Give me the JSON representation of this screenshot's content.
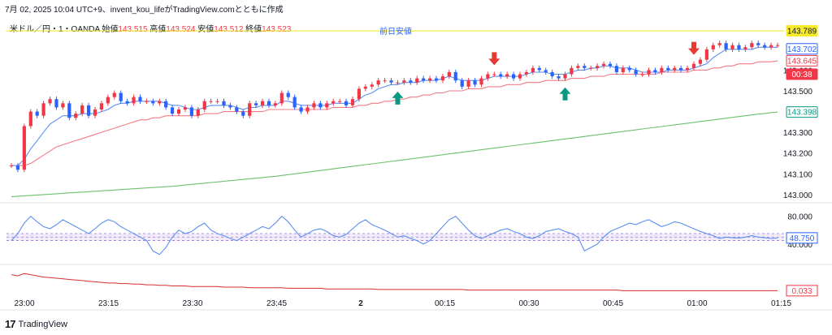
{
  "header": {
    "text": "7月 02, 2025 10:04 UTC+9、invent_kou_lifeがTradingView.comとともに作成"
  },
  "ohlc": {
    "symbol": "米ドル／円・1・OANDA",
    "open_label": "始値",
    "open": "143.515",
    "high_label": "高値",
    "high": "143.524",
    "low_label": "安値",
    "low": "143.512",
    "close_label": "終値",
    "close": "143.523"
  },
  "footer": {
    "brand": "TradingView",
    "logo": "17"
  },
  "chart_data": {
    "type": "candlestick",
    "price_axis": {
      "ylim": [
        142.98,
        143.84
      ],
      "ticks": [
        "143.000",
        "143.100",
        "143.200",
        "143.300",
        "143.500",
        "143.600"
      ],
      "labels": [
        {
          "text": "143.789",
          "bg": "#f7ec2a",
          "fg": "#131722"
        },
        {
          "text": "143.702",
          "bg": "#ffffff",
          "fg": "#2962ff",
          "border": "#2962ff"
        },
        {
          "text": "143.645",
          "bg": "#ffffff",
          "fg": "#f23645",
          "border": "#f23645"
        },
        {
          "text": "00:38",
          "bg": "#f23645",
          "fg": "#ffffff"
        },
        {
          "text": "143.398",
          "bg": "#ffffff",
          "fg": "#089981",
          "border": "#089981"
        }
      ]
    },
    "prev_low_line": {
      "label": "前日安値",
      "value": 143.789,
      "color": "#f7ec2a"
    },
    "time_axis": {
      "ticks": [
        "23:00",
        "23:15",
        "23:30",
        "23:45",
        "2",
        "00:15",
        "00:30",
        "00:45",
        "01:00",
        "01:15"
      ]
    },
    "colors": {
      "up": "#f23645",
      "down": "#2962ff",
      "ma_fast": "#5b8ff0",
      "ma_mid": "#f27b86",
      "ma_slow": "#6cc16c",
      "rsi": "#5b8ff0",
      "lower": "#d32f2f"
    },
    "candles": {
      "open": [
        143.14,
        143.14,
        143.12,
        143.33,
        143.4,
        143.38,
        143.44,
        143.46,
        143.42,
        143.44,
        143.37,
        143.39,
        143.43,
        143.38,
        143.41,
        143.44,
        143.47,
        143.49,
        143.45,
        143.44,
        143.47,
        143.45,
        143.45,
        143.44,
        143.45,
        143.42,
        143.39,
        143.41,
        143.42,
        143.38,
        143.41,
        143.45,
        143.45,
        143.45,
        143.43,
        143.42,
        143.4,
        143.38,
        143.44,
        143.43,
        143.45,
        143.43,
        143.44,
        143.49,
        143.47,
        143.42,
        143.4,
        143.42,
        143.44,
        143.42,
        143.44,
        143.45,
        143.45,
        143.43,
        143.46,
        143.51,
        143.52,
        143.53,
        143.55,
        143.55,
        143.54,
        143.54,
        143.55,
        143.54,
        143.56,
        143.55,
        143.56,
        143.55,
        143.57,
        143.59,
        143.55,
        143.52,
        143.55,
        143.53,
        143.56,
        143.58,
        143.58,
        143.57,
        143.58,
        143.56,
        143.58,
        143.59,
        143.61,
        143.6,
        143.59,
        143.57,
        143.56,
        143.58,
        143.61,
        143.62,
        143.61,
        143.61,
        143.62,
        143.63,
        143.62,
        143.59,
        143.61,
        143.6,
        143.58,
        143.58,
        143.6,
        143.59,
        143.61,
        143.6,
        143.61,
        143.6,
        143.61,
        143.63,
        143.65,
        143.7,
        143.72,
        143.73,
        143.7,
        143.72,
        143.7,
        143.71,
        143.73,
        143.72,
        143.71,
        143.72
      ],
      "close": [
        143.14,
        143.12,
        143.33,
        143.4,
        143.38,
        143.44,
        143.46,
        143.42,
        143.44,
        143.37,
        143.39,
        143.43,
        143.38,
        143.41,
        143.44,
        143.47,
        143.49,
        143.45,
        143.44,
        143.47,
        143.45,
        143.45,
        143.44,
        143.45,
        143.42,
        143.39,
        143.41,
        143.42,
        143.38,
        143.41,
        143.45,
        143.45,
        143.45,
        143.43,
        143.42,
        143.4,
        143.38,
        143.44,
        143.43,
        143.45,
        143.43,
        143.44,
        143.49,
        143.47,
        143.42,
        143.4,
        143.42,
        143.44,
        143.42,
        143.44,
        143.45,
        143.45,
        143.43,
        143.46,
        143.51,
        143.52,
        143.53,
        143.55,
        143.55,
        143.54,
        143.54,
        143.55,
        143.54,
        143.56,
        143.55,
        143.56,
        143.55,
        143.57,
        143.59,
        143.55,
        143.52,
        143.55,
        143.53,
        143.56,
        143.58,
        143.58,
        143.57,
        143.58,
        143.56,
        143.58,
        143.59,
        143.61,
        143.6,
        143.59,
        143.57,
        143.56,
        143.58,
        143.61,
        143.62,
        143.61,
        143.61,
        143.62,
        143.63,
        143.62,
        143.59,
        143.61,
        143.6,
        143.58,
        143.58,
        143.6,
        143.59,
        143.61,
        143.6,
        143.61,
        143.6,
        143.61,
        143.63,
        143.65,
        143.7,
        143.72,
        143.73,
        143.7,
        143.72,
        143.7,
        143.71,
        143.73,
        143.72,
        143.71,
        143.72,
        143.72
      ]
    },
    "ma_fast": [
      143.14,
      143.14,
      143.17,
      143.22,
      143.26,
      143.3,
      143.34,
      143.36,
      143.38,
      143.38,
      143.38,
      143.39,
      143.39,
      143.39,
      143.4,
      143.41,
      143.43,
      143.44,
      143.44,
      143.45,
      143.45,
      143.45,
      143.45,
      143.45,
      143.44,
      143.43,
      143.43,
      143.42,
      143.41,
      143.41,
      143.42,
      143.43,
      143.43,
      143.43,
      143.43,
      143.42,
      143.41,
      143.42,
      143.42,
      143.43,
      143.43,
      143.43,
      143.45,
      143.45,
      143.44,
      143.43,
      143.43,
      143.43,
      143.43,
      143.43,
      143.44,
      143.44,
      143.44,
      143.44,
      143.46,
      143.48,
      143.49,
      143.51,
      143.52,
      143.53,
      143.53,
      143.54,
      143.54,
      143.54,
      143.55,
      143.55,
      143.55,
      143.56,
      143.57,
      143.56,
      143.55,
      143.55,
      143.55,
      143.55,
      143.56,
      143.57,
      143.57,
      143.57,
      143.57,
      143.57,
      143.58,
      143.59,
      143.59,
      143.59,
      143.58,
      143.58,
      143.58,
      143.59,
      143.6,
      143.6,
      143.61,
      143.61,
      143.62,
      143.62,
      143.61,
      143.61,
      143.61,
      143.6,
      143.59,
      143.59,
      143.59,
      143.59,
      143.6,
      143.6,
      143.6,
      143.6,
      143.61,
      143.62,
      143.63,
      143.66,
      143.68,
      143.7,
      143.7,
      143.7,
      143.7,
      143.7,
      143.71,
      143.71,
      143.71,
      143.71
    ],
    "ma_mid": [
      143.14,
      143.14,
      143.14,
      143.15,
      143.17,
      143.19,
      143.21,
      143.23,
      143.24,
      143.25,
      143.26,
      143.27,
      143.28,
      143.29,
      143.3,
      143.31,
      143.32,
      143.33,
      143.34,
      143.35,
      143.36,
      143.36,
      143.37,
      143.37,
      143.38,
      143.38,
      143.38,
      143.38,
      143.38,
      143.38,
      143.39,
      143.39,
      143.39,
      143.4,
      143.4,
      143.4,
      143.4,
      143.4,
      143.4,
      143.4,
      143.41,
      143.41,
      143.41,
      143.41,
      143.41,
      143.41,
      143.41,
      143.41,
      143.41,
      143.41,
      143.42,
      143.42,
      143.42,
      143.42,
      143.43,
      143.43,
      143.44,
      143.44,
      143.45,
      143.45,
      143.46,
      143.46,
      143.47,
      143.47,
      143.48,
      143.48,
      143.49,
      143.49,
      143.5,
      143.5,
      143.5,
      143.51,
      143.51,
      143.51,
      143.52,
      143.52,
      143.52,
      143.53,
      143.53,
      143.53,
      143.54,
      143.54,
      143.54,
      143.55,
      143.55,
      143.55,
      143.55,
      143.56,
      143.56,
      143.56,
      143.57,
      143.57,
      143.57,
      143.58,
      143.58,
      143.58,
      143.58,
      143.58,
      143.58,
      143.58,
      143.58,
      143.59,
      143.59,
      143.59,
      143.59,
      143.59,
      143.6,
      143.6,
      143.6,
      143.61,
      143.61,
      143.62,
      143.62,
      143.63,
      143.63,
      143.63,
      143.64,
      143.64,
      143.64,
      143.645
    ],
    "ma_slow": [
      142.99,
      142.992,
      142.994,
      142.996,
      142.998,
      143.0,
      143.002,
      143.004,
      143.006,
      143.008,
      143.01,
      143.012,
      143.014,
      143.016,
      143.018,
      143.02,
      143.022,
      143.024,
      143.026,
      143.028,
      143.03,
      143.032,
      143.034,
      143.036,
      143.038,
      143.04,
      143.043,
      143.046,
      143.049,
      143.052,
      143.055,
      143.058,
      143.061,
      143.064,
      143.067,
      143.07,
      143.073,
      143.076,
      143.079,
      143.082,
      143.085,
      143.088,
      143.092,
      143.096,
      143.1,
      143.104,
      143.108,
      143.112,
      143.116,
      143.12,
      143.124,
      143.128,
      143.132,
      143.136,
      143.14,
      143.144,
      143.148,
      143.152,
      143.156,
      143.16,
      143.164,
      143.168,
      143.172,
      143.176,
      143.18,
      143.184,
      143.188,
      143.192,
      143.196,
      143.2,
      143.204,
      143.208,
      143.212,
      143.216,
      143.22,
      143.224,
      143.228,
      143.232,
      143.236,
      143.24,
      143.244,
      143.248,
      143.252,
      143.256,
      143.26,
      143.264,
      143.268,
      143.272,
      143.276,
      143.28,
      143.284,
      143.288,
      143.292,
      143.296,
      143.3,
      143.304,
      143.308,
      143.312,
      143.316,
      143.32,
      143.324,
      143.328,
      143.332,
      143.336,
      143.34,
      143.344,
      143.348,
      143.352,
      143.356,
      143.36,
      143.364,
      143.368,
      143.372,
      143.376,
      143.38,
      143.384,
      143.388,
      143.391,
      143.395,
      143.398
    ],
    "rsi_panel": {
      "ylim": [
        20,
        90
      ],
      "ticks": [
        "80.000",
        "40.000"
      ],
      "band": [
        45,
        55
      ],
      "value_label": "48.750",
      "values": [
        45,
        55,
        70,
        80,
        72,
        65,
        62,
        68,
        75,
        70,
        65,
        60,
        55,
        62,
        70,
        75,
        72,
        65,
        60,
        55,
        50,
        45,
        30,
        25,
        35,
        50,
        60,
        55,
        58,
        65,
        70,
        60,
        55,
        52,
        48,
        45,
        50,
        55,
        60,
        65,
        62,
        70,
        80,
        72,
        60,
        50,
        55,
        60,
        62,
        58,
        52,
        50,
        54,
        62,
        70,
        75,
        68,
        64,
        60,
        55,
        50,
        52,
        48,
        45,
        40,
        45,
        55,
        65,
        75,
        80,
        70,
        60,
        52,
        48,
        52,
        56,
        60,
        62,
        58,
        55,
        50,
        48,
        52,
        58,
        60,
        62,
        58,
        55,
        50,
        30,
        35,
        40,
        50,
        58,
        62,
        66,
        70,
        68,
        72,
        75,
        70,
        65,
        68,
        72,
        70,
        66,
        62,
        58,
        55,
        52,
        48,
        50,
        49,
        48.75,
        50,
        52,
        50,
        49,
        48,
        48.75
      ]
    },
    "lower_panel": {
      "value_label": "0.033",
      "values": [
        0.06,
        0.058,
        0.062,
        0.06,
        0.058,
        0.056,
        0.055,
        0.054,
        0.053,
        0.052,
        0.051,
        0.05,
        0.049,
        0.048,
        0.047,
        0.046,
        0.046,
        0.045,
        0.045,
        0.044,
        0.044,
        0.043,
        0.043,
        0.042,
        0.042,
        0.041,
        0.041,
        0.041,
        0.04,
        0.04,
        0.04,
        0.04,
        0.04,
        0.039,
        0.039,
        0.039,
        0.039,
        0.038,
        0.038,
        0.038,
        0.038,
        0.038,
        0.038,
        0.037,
        0.037,
        0.037,
        0.037,
        0.037,
        0.037,
        0.036,
        0.036,
        0.036,
        0.036,
        0.036,
        0.036,
        0.036,
        0.036,
        0.035,
        0.035,
        0.035,
        0.035,
        0.035,
        0.035,
        0.035,
        0.035,
        0.035,
        0.035,
        0.035,
        0.035,
        0.035,
        0.035,
        0.034,
        0.034,
        0.034,
        0.034,
        0.034,
        0.034,
        0.034,
        0.034,
        0.034,
        0.034,
        0.034,
        0.034,
        0.034,
        0.034,
        0.034,
        0.034,
        0.034,
        0.034,
        0.034,
        0.034,
        0.034,
        0.034,
        0.034,
        0.034,
        0.033,
        0.033,
        0.033,
        0.033,
        0.033,
        0.033,
        0.033,
        0.033,
        0.033,
        0.033,
        0.033,
        0.033,
        0.033,
        0.033,
        0.033,
        0.033,
        0.033,
        0.033,
        0.033,
        0.033,
        0.033,
        0.033,
        0.033,
        0.033,
        0.033
      ]
    },
    "markers": [
      {
        "type": "down",
        "index": 75,
        "color": "#e53935"
      },
      {
        "type": "up",
        "index": 60,
        "color": "#089981"
      },
      {
        "type": "up",
        "index": 86,
        "color": "#089981"
      },
      {
        "type": "down",
        "index": 106,
        "color": "#e53935"
      }
    ]
  }
}
